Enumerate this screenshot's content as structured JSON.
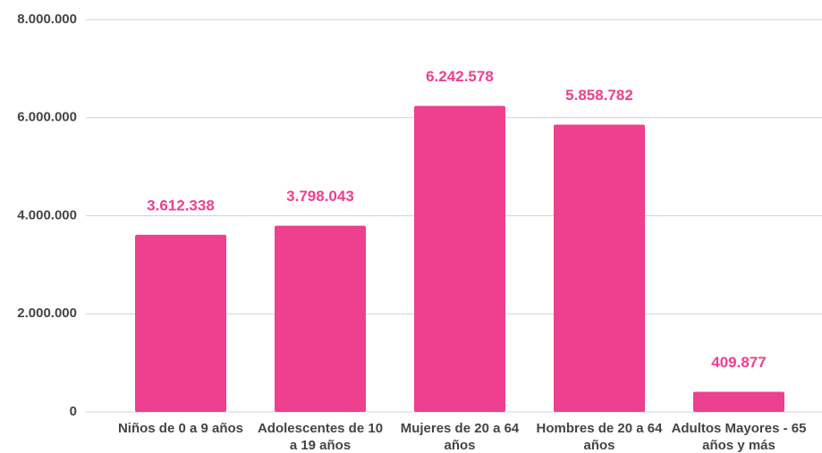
{
  "chart_data": {
    "type": "bar",
    "categories": [
      "Niños de 0 a 9 años",
      "Adolescentes de 10 a 19 años",
      "Mujeres de 20 a 64 años",
      "Hombres de 20 a 64 años",
      "Adultos Mayores - 65 años y más"
    ],
    "values": [
      3612338,
      3798043,
      6242578,
      5858782,
      409877
    ],
    "value_labels": [
      "3.612.338",
      "3.798.043",
      "6.242.578",
      "5.858.782",
      "409.877"
    ],
    "color": "#ef3f8f",
    "ylim": [
      0,
      8000000
    ],
    "yticks": [
      0,
      {
        "value": 2000000,
        "label": "2.000.000"
      },
      {
        "value": 4000000,
        "label": "4.000.000"
      },
      {
        "value": 6000000,
        "label": "6.000.000"
      },
      {
        "value": 8000000,
        "label": "8.000.000"
      }
    ],
    "grid": true
  }
}
